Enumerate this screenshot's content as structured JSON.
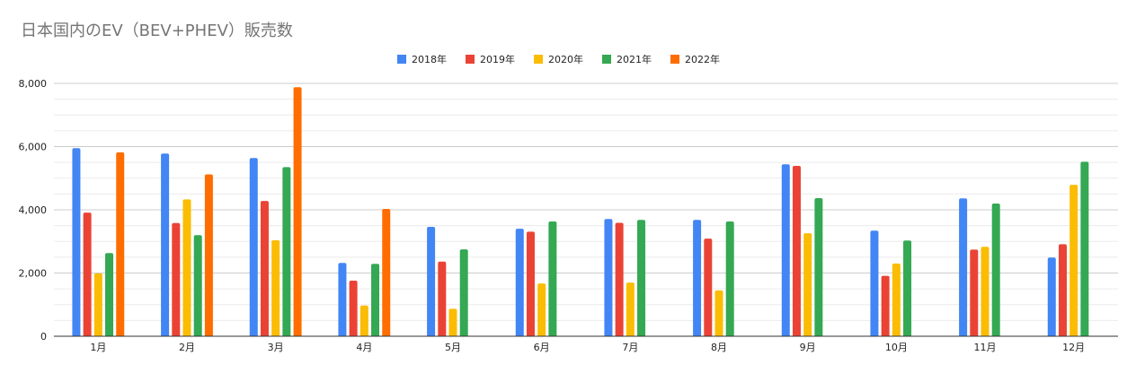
{
  "chart_data": {
    "type": "bar",
    "title": "日本国内のEV（BEV+PHEV）販売数",
    "xlabel": "",
    "ylabel": "",
    "categories": [
      "1月",
      "2月",
      "3月",
      "4月",
      "5月",
      "6月",
      "7月",
      "8月",
      "9月",
      "10月",
      "11月",
      "12月"
    ],
    "series": [
      {
        "name": "2018年",
        "color": "#4285F4",
        "values": [
          5950,
          5780,
          5640,
          2320,
          3460,
          3400,
          3710,
          3680,
          5440,
          3340,
          4360,
          2490
        ]
      },
      {
        "name": "2019年",
        "color": "#EA4335",
        "values": [
          3910,
          3580,
          4280,
          1760,
          2360,
          3310,
          3590,
          3090,
          5390,
          1910,
          2740,
          2910
        ]
      },
      {
        "name": "2020年",
        "color": "#FBBC04",
        "values": [
          1990,
          4330,
          3040,
          970,
          870,
          1670,
          1700,
          1450,
          3260,
          2300,
          2830,
          4790
        ]
      },
      {
        "name": "2021年",
        "color": "#34A853",
        "values": [
          2630,
          3200,
          5350,
          2290,
          2750,
          3630,
          3680,
          3630,
          4370,
          3030,
          4200,
          5520
        ]
      },
      {
        "name": "2022年",
        "color": "#FF6D01",
        "values": [
          5820,
          5120,
          7880,
          4030,
          null,
          null,
          null,
          null,
          null,
          null,
          null,
          null
        ]
      }
    ],
    "ylim": [
      0,
      8000
    ],
    "yticks": [
      0,
      2000,
      4000,
      6000,
      8000
    ],
    "ytick_labels": [
      "0",
      "2,000",
      "4,000",
      "6,000",
      "8,000"
    ],
    "grid": true,
    "minor_grid": true,
    "legend_position": "top-center"
  },
  "colors": {
    "background": "#FFFFFF",
    "title": "#757575",
    "text": "#222222",
    "gridline": "#CCCCCC",
    "minor_gridline": "#EBEBEB",
    "axis": "#333333"
  }
}
